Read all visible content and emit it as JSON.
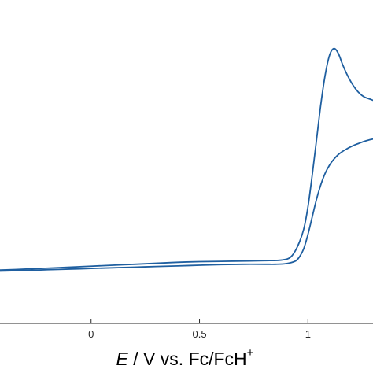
{
  "chart_data": {
    "type": "line",
    "title": "",
    "xlabel": {
      "symbol": "E",
      "unit": " / V  vs. Fc/FcH",
      "superscript": "+"
    },
    "ylabel": "",
    "xlim": [
      -0.42,
      1.3
    ],
    "ylim": [
      0,
      1
    ],
    "x_ticks": [
      {
        "value": 0,
        "label": "0"
      },
      {
        "value": 0.5,
        "label": "0.5"
      },
      {
        "value": 1,
        "label": "1"
      }
    ],
    "grid": false,
    "legend": "none",
    "colors": {
      "line": "#1f5fa0",
      "axis": "#262626"
    },
    "series": [
      {
        "role": "forward-scan",
        "x": [
          -0.42,
          -0.3,
          -0.2,
          -0.1,
          0.0,
          0.1,
          0.2,
          0.3,
          0.4,
          0.5,
          0.6,
          0.7,
          0.8,
          0.88,
          0.92,
          0.95,
          0.98,
          1.0,
          1.02,
          1.04,
          1.06,
          1.08,
          1.1,
          1.12,
          1.14,
          1.16,
          1.18,
          1.2,
          1.22,
          1.24,
          1.26,
          1.28,
          1.3
        ],
        "y": [
          0.165,
          0.168,
          0.171,
          0.174,
          0.177,
          0.18,
          0.183,
          0.186,
          0.189,
          0.191,
          0.192,
          0.193,
          0.194,
          0.196,
          0.205,
          0.235,
          0.29,
          0.36,
          0.46,
          0.57,
          0.68,
          0.77,
          0.83,
          0.85,
          0.835,
          0.8,
          0.77,
          0.745,
          0.725,
          0.71,
          0.7,
          0.695,
          0.69
        ]
      },
      {
        "role": "reverse-scan",
        "x": [
          1.3,
          1.28,
          1.26,
          1.24,
          1.22,
          1.2,
          1.18,
          1.16,
          1.14,
          1.12,
          1.1,
          1.08,
          1.06,
          1.04,
          1.02,
          1.0,
          0.98,
          0.96,
          0.94,
          0.9,
          0.85,
          0.8,
          0.7,
          0.6,
          0.5,
          0.4,
          0.3,
          0.2,
          0.1,
          0.0,
          -0.1,
          -0.2,
          -0.3,
          -0.42
        ],
        "y": [
          0.57,
          0.567,
          0.563,
          0.558,
          0.553,
          0.547,
          0.54,
          0.532,
          0.522,
          0.508,
          0.49,
          0.465,
          0.43,
          0.385,
          0.33,
          0.275,
          0.23,
          0.205,
          0.192,
          0.185,
          0.183,
          0.183,
          0.183,
          0.182,
          0.18,
          0.178,
          0.176,
          0.174,
          0.172,
          0.17,
          0.168,
          0.166,
          0.164,
          0.162
        ]
      }
    ]
  }
}
